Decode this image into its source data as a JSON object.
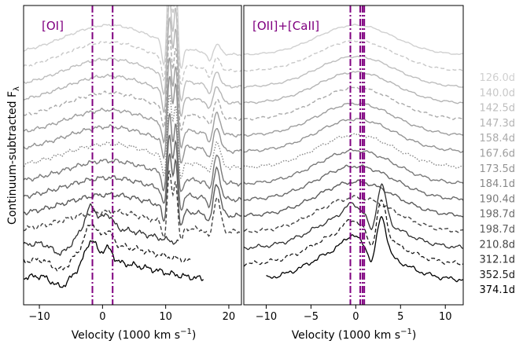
{
  "chart_data": {
    "type": "line",
    "ylabel": "Continuum-subtracted F",
    "ylabel_subscript": "λ",
    "epochs": [
      {
        "label": "126.0d",
        "color": "#d0d0d0",
        "dash": "solid"
      },
      {
        "label": "140.0d",
        "color": "#c8c8c8",
        "dash": "dashed"
      },
      {
        "label": "142.5d",
        "color": "#bebebe",
        "dash": "solid"
      },
      {
        "label": "147.3d",
        "color": "#b4b4b4",
        "dash": "solid"
      },
      {
        "label": "158.4d",
        "color": "#aaaaaa",
        "dash": "dashed"
      },
      {
        "label": "167.6d",
        "color": "#9e9e9e",
        "dash": "solid"
      },
      {
        "label": "173.5d",
        "color": "#939393",
        "dash": "solid"
      },
      {
        "label": "184.1d",
        "color": "#888888",
        "dash": "dotted"
      },
      {
        "label": "190.4d",
        "color": "#7a7a7a",
        "dash": "solid"
      },
      {
        "label": "198.7d",
        "color": "#6a6a6a",
        "dash": "solid"
      },
      {
        "label": "198.7d",
        "color": "#5a5a5a",
        "dash": "solid"
      },
      {
        "label": "210.8d",
        "color": "#444444",
        "dash": "dashed"
      },
      {
        "label": "312.1d",
        "color": "#2e2e2e",
        "dash": "solid"
      },
      {
        "label": "352.5d",
        "color": "#1a1a1a",
        "dash": "dashed"
      },
      {
        "label": "374.1d",
        "color": "#000000",
        "dash": "solid"
      }
    ],
    "panels": [
      {
        "annotation": "[OI]",
        "xlabel": "Velocity (1000 km s",
        "xlabel_sup": "−1",
        "xlabel_close": ")",
        "xlim": [
          -12.5,
          22
        ],
        "xticks": [
          -10,
          0,
          10,
          20
        ],
        "xtick_labels": [
          "−10",
          "0",
          "10",
          "20"
        ],
        "vlines": [
          -1.6,
          1.6
        ]
      },
      {
        "annotation": "[OII]+[CaII]",
        "xlabel": "Velocity (1000 km s",
        "xlabel_sup": "−1",
        "xlabel_close": ")",
        "xlim": [
          -12.5,
          12
        ],
        "xticks": [
          -10,
          -5,
          0,
          5,
          10
        ],
        "xtick_labels": [
          "−10",
          "−5",
          "0",
          "5",
          "10"
        ],
        "vlines": [
          -0.6,
          0.5,
          0.75,
          0.95
        ]
      }
    ],
    "annotation_color": "#800080",
    "vline_color": "#800080"
  }
}
